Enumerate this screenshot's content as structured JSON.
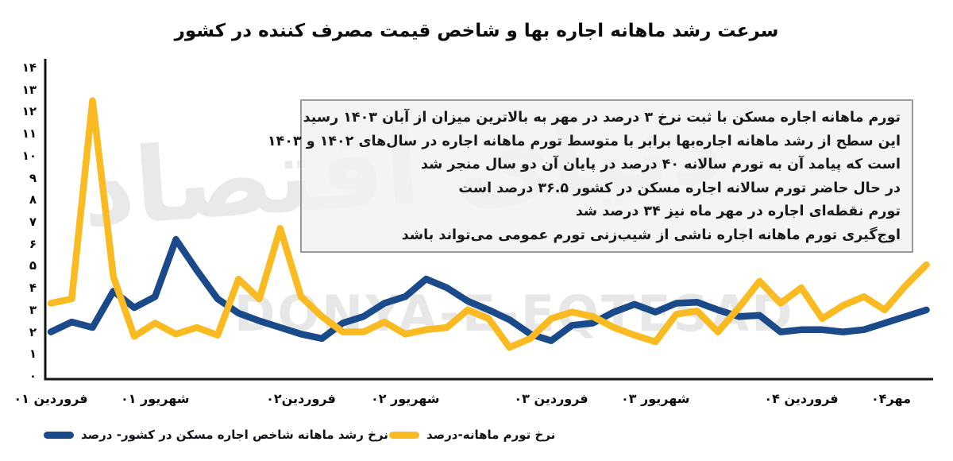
{
  "title": "سرعت رشد ماهانه اجاره بها و شاخص قیمت مصرف کننده در کشور",
  "watermarks": {
    "farsi": "دنیای اقتصاد",
    "latin": "DONYA-E-EQTESAD"
  },
  "annotation": {
    "lines": [
      "تورم ماهانه اجاره مسکن با ثبت نرخ ۳ درصد در مهر به بالاترین میزان از آبان ۱۴۰۳ رسید",
      "این سطح از رشد ماهانه اجاره‌بها برابر با متوسط تورم ماهانه اجاره در سال‌های ۱۴۰۲ و ۱۴۰۳",
      "است که پیامد آن به تورم سالانه ۴۰ درصد در پایان آن دو سال منجر شد",
      "در حال حاضر تورم سالانه اجاره مسکن در کشور ۳۶.۵ درصد است",
      "تورم نقطه‌ای اجاره در مهر ماه نیز ۳۴ درصد شد",
      "اوج‌گیری تورم ماهانه اجاره ناشی از شیب‌زنی تورم عمومی می‌تواند باشد"
    ]
  },
  "chart_data": {
    "type": "line",
    "n_points": 43,
    "grid": false,
    "legend_position": "bottom",
    "y_min": 0,
    "y_max": 14,
    "y_step": 1,
    "y_ticks": [
      "۱۴",
      "۱۳",
      "۱۲",
      "۱۱",
      "۱۰",
      "۹",
      "۸",
      "۷",
      "۶",
      "۵",
      "۴",
      "۳",
      "۲",
      "۱",
      "۰"
    ],
    "x_ticks": [
      {
        "index": 0,
        "label": "فروردین ۰۱"
      },
      {
        "index": 5,
        "label": "شهریور ۰۱"
      },
      {
        "index": 12,
        "label": "فروردین۰۲"
      },
      {
        "index": 17,
        "label": "شهریور ۰۲"
      },
      {
        "index": 24,
        "label": "فروردین ۰۳"
      },
      {
        "index": 29,
        "label": "شهریور ۰۳"
      },
      {
        "index": 36,
        "label": "فروردین ۰۴"
      },
      {
        "index": 42,
        "label": "مهر۰۴"
      }
    ],
    "series": [
      {
        "name": "نرخ رشد ماهانه شاخص اجاره مسکن در کشور- درصد",
        "color": "#1B4A8A",
        "values": [
          2.0,
          2.45,
          2.2,
          3.85,
          3.1,
          3.6,
          6.2,
          4.8,
          3.5,
          2.85,
          2.5,
          2.2,
          1.9,
          1.7,
          2.4,
          2.7,
          3.3,
          3.6,
          4.4,
          4.0,
          3.4,
          3.0,
          2.55,
          1.9,
          1.6,
          2.3,
          2.4,
          2.9,
          3.25,
          2.9,
          3.3,
          3.35,
          3.0,
          2.7,
          2.75,
          2.0,
          2.1,
          2.1,
          2.0,
          2.1,
          2.4,
          2.7,
          3.0
        ]
      },
      {
        "name": "نرخ تورم ماهانه-درصد",
        "color": "#F9BB21",
        "values": [
          3.3,
          3.5,
          12.5,
          4.5,
          1.8,
          2.4,
          1.9,
          2.2,
          1.85,
          4.4,
          3.5,
          6.7,
          3.6,
          2.7,
          2.0,
          2.0,
          2.45,
          1.9,
          2.1,
          2.2,
          3.0,
          2.6,
          1.3,
          1.7,
          2.6,
          2.9,
          2.7,
          2.2,
          1.85,
          1.55,
          2.8,
          2.95,
          2.0,
          3.1,
          4.3,
          3.3,
          4.0,
          2.6,
          3.2,
          3.6,
          3.0,
          4.1,
          5.05
        ]
      }
    ]
  }
}
